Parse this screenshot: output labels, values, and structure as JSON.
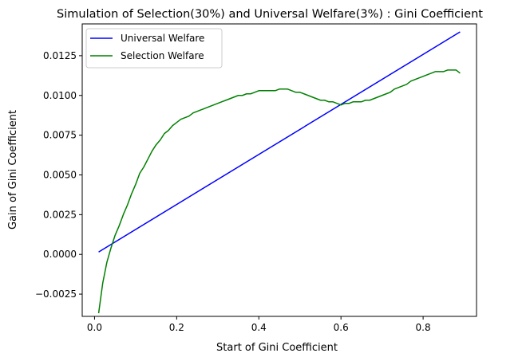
{
  "chart_data": {
    "type": "line",
    "title": "Simulation of Selection(30%) and Universal Welfare(3%) : Gini Coefficient",
    "xlabel": "Start of Gini Coefficient",
    "ylabel": "Gain of Gini Coefficient",
    "xlim": [
      -0.03,
      0.93
    ],
    "ylim": [
      -0.0039,
      0.0145
    ],
    "xticks": [
      0.0,
      0.2,
      0.4,
      0.6,
      0.8
    ],
    "xtick_labels": [
      "0.0",
      "0.2",
      "0.4",
      "0.6",
      "0.8"
    ],
    "yticks": [
      -0.0025,
      0.0,
      0.0025,
      0.005,
      0.0075,
      0.01,
      0.0125
    ],
    "ytick_labels": [
      "−0.0025",
      "0.0000",
      "0.0025",
      "0.0050",
      "0.0075",
      "0.0100",
      "0.0125"
    ],
    "grid": false,
    "legend_position": "top-left",
    "series": [
      {
        "name": "Universal Welfare",
        "color": "#0000ff",
        "x": [
          0.01,
          0.89
        ],
        "y": [
          0.00015,
          0.014
        ]
      },
      {
        "name": "Selection Welfare",
        "color": "#008000",
        "x": [
          0.01,
          0.02,
          0.03,
          0.04,
          0.05,
          0.06,
          0.07,
          0.08,
          0.09,
          0.1,
          0.11,
          0.12,
          0.13,
          0.14,
          0.15,
          0.16,
          0.17,
          0.18,
          0.19,
          0.2,
          0.21,
          0.22,
          0.23,
          0.24,
          0.25,
          0.26,
          0.27,
          0.28,
          0.29,
          0.3,
          0.31,
          0.32,
          0.33,
          0.34,
          0.35,
          0.36,
          0.37,
          0.38,
          0.39,
          0.4,
          0.41,
          0.42,
          0.43,
          0.44,
          0.45,
          0.46,
          0.47,
          0.48,
          0.49,
          0.5,
          0.51,
          0.52,
          0.53,
          0.54,
          0.55,
          0.56,
          0.57,
          0.58,
          0.59,
          0.6,
          0.61,
          0.62,
          0.63,
          0.64,
          0.65,
          0.66,
          0.67,
          0.68,
          0.69,
          0.7,
          0.71,
          0.72,
          0.73,
          0.74,
          0.75,
          0.76,
          0.77,
          0.78,
          0.79,
          0.8,
          0.81,
          0.82,
          0.83,
          0.84,
          0.85,
          0.86,
          0.87,
          0.88,
          0.89
        ],
        "y": [
          -0.0037,
          -0.0018,
          -0.0005,
          0.0004,
          0.0012,
          0.0018,
          0.0025,
          0.0031,
          0.0038,
          0.0044,
          0.0051,
          0.0055,
          0.006,
          0.0065,
          0.0069,
          0.0072,
          0.0076,
          0.0078,
          0.0081,
          0.0083,
          0.0085,
          0.0086,
          0.0087,
          0.0089,
          0.009,
          0.0091,
          0.0092,
          0.0093,
          0.0094,
          0.0095,
          0.0096,
          0.0097,
          0.0098,
          0.0099,
          0.01,
          0.01,
          0.0101,
          0.0101,
          0.0102,
          0.0103,
          0.0103,
          0.0103,
          0.0103,
          0.0103,
          0.0104,
          0.0104,
          0.0104,
          0.0103,
          0.0102,
          0.0102,
          0.0101,
          0.01,
          0.0099,
          0.0098,
          0.0097,
          0.0097,
          0.0096,
          0.0096,
          0.0095,
          0.0094,
          0.0095,
          0.0095,
          0.0096,
          0.0096,
          0.0096,
          0.0097,
          0.0097,
          0.0098,
          0.0099,
          0.01,
          0.0101,
          0.0102,
          0.0104,
          0.0105,
          0.0106,
          0.0107,
          0.0109,
          0.011,
          0.0111,
          0.0112,
          0.0113,
          0.0114,
          0.0115,
          0.0115,
          0.0115,
          0.0116,
          0.0116,
          0.0116,
          0.0114
        ]
      }
    ]
  }
}
